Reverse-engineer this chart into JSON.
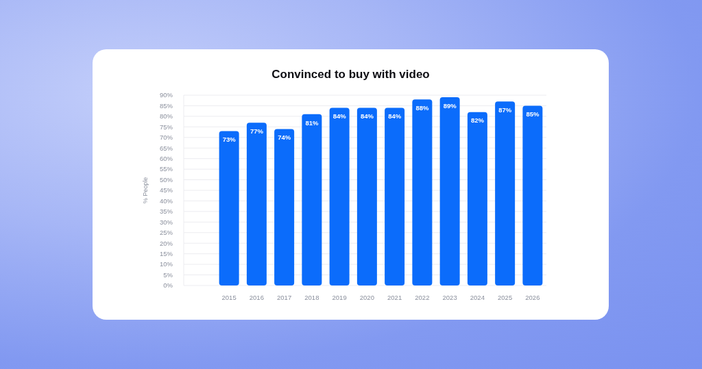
{
  "chart_data": {
    "type": "bar",
    "title": "Convinced to buy with video",
    "ylabel": "% People",
    "categories": [
      "2015",
      "2016",
      "2017",
      "2018",
      "2019",
      "2020",
      "2021",
      "2022",
      "2023",
      "2024",
      "2025",
      "2026"
    ],
    "values": [
      73,
      77,
      74,
      81,
      84,
      84,
      84,
      88,
      89,
      82,
      87,
      85
    ],
    "value_labels": [
      "73%",
      "77%",
      "74%",
      "81%",
      "84%",
      "84%",
      "84%",
      "88%",
      "89%",
      "82%",
      "87%",
      "85%"
    ],
    "color": "#0b6cfb",
    "ylim": [
      0,
      90
    ],
    "yticks": [
      {
        "value": 0,
        "label": "0%"
      },
      {
        "value": 5,
        "label": "5%"
      },
      {
        "value": 10,
        "label": "10%"
      },
      {
        "value": 15,
        "label": "15%"
      },
      {
        "value": 20,
        "label": "20%"
      },
      {
        "value": 25,
        "label": "25%"
      },
      {
        "value": 30,
        "label": "30%"
      },
      {
        "value": 35,
        "label": "35%"
      },
      {
        "value": 40,
        "label": "40%"
      },
      {
        "value": 45,
        "label": "45%"
      },
      {
        "value": 50,
        "label": "50%"
      },
      {
        "value": 55,
        "label": "55%"
      },
      {
        "value": 60,
        "label": "60%"
      },
      {
        "value": 65,
        "label": "65%"
      },
      {
        "value": 70,
        "label": "70%"
      },
      {
        "value": 75,
        "label": "75%"
      },
      {
        "value": 80,
        "label": "80%"
      },
      {
        "value": 85,
        "label": "85%"
      },
      {
        "value": 90,
        "label": "90%"
      }
    ],
    "grid": "y"
  }
}
